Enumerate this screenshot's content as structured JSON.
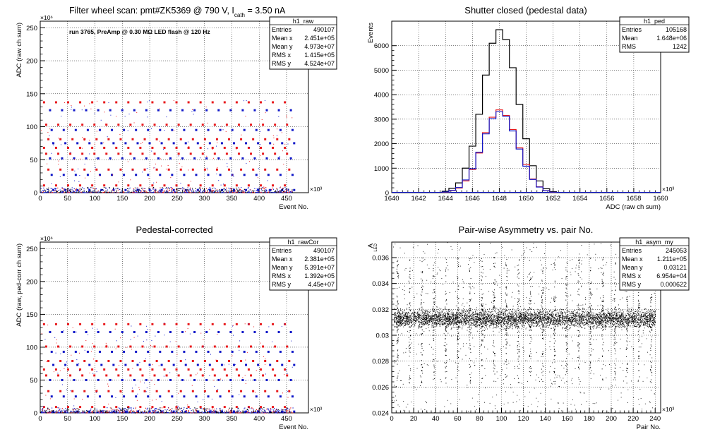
{
  "colors": {
    "red": "#e8191c",
    "blue": "#1018c8",
    "black": "#000000",
    "grid": "#000000"
  },
  "chart_data": [
    {
      "type": "scatter",
      "title": "Filter wheel scan: pmt#ZK5369 @   790 V, I",
      "title_sub": "cath",
      "title_tail": " = 3.50 nA",
      "annotation": "run 3765, PreAmp @ 0.30 MΩ LED flash @  120 Hz",
      "xlabel": "Event No.",
      "ylabel": "ADC (raw ch sum)",
      "x_exponent": "×10³",
      "y_exponent": "×10⁶",
      "xlim": [
        0,
        490
      ],
      "ylim": [
        0,
        260
      ],
      "xticks": [
        "0",
        "50",
        "100",
        "150",
        "200",
        "250",
        "300",
        "350",
        "400",
        "450"
      ],
      "yticks": [
        "0",
        "50",
        "100",
        "150",
        "200",
        "250"
      ],
      "grid": true,
      "red_levels": [
        137,
        103,
        81,
        68,
        59,
        35,
        11
      ],
      "blue_levels": [
        125,
        95,
        75,
        52,
        27,
        4
      ],
      "cycle_start": [
        0,
        462
      ],
      "cycle_period": 22,
      "stats": {
        "name": "h1_raw",
        "rows": [
          {
            "label": "Entries",
            "value": "490107"
          },
          {
            "label": "Mean x",
            "value": "2.451e+05"
          },
          {
            "label": "Mean y",
            "value": "4.973e+07"
          },
          {
            "label": "RMS x",
            "value": "1.415e+05"
          },
          {
            "label": "RMS y",
            "value": "4.524e+07"
          }
        ]
      }
    },
    {
      "type": "line",
      "title": "Shutter closed (pedestal data)",
      "xlabel": "ADC (raw ch sum)",
      "ylabel": "Events",
      "x_exponent": "×10³",
      "xlim": [
        1640,
        1660
      ],
      "ylim": [
        0,
        7000
      ],
      "xticks": [
        "1640",
        "1642",
        "1644",
        "1646",
        "1648",
        "1650",
        "1652",
        "1654",
        "1656",
        "1658",
        "1660"
      ],
      "yticks": [
        "0",
        "1000",
        "2000",
        "3000",
        "4000",
        "5000",
        "6000"
      ],
      "grid": true,
      "series": [
        {
          "color": "black",
          "x": [
            1644.0,
            1644.5,
            1645.0,
            1645.5,
            1646.0,
            1646.5,
            1647.0,
            1647.5,
            1648.0,
            1648.5,
            1649.0,
            1649.5,
            1650.0,
            1650.5,
            1651.0,
            1651.5,
            1652.0
          ],
          "values": [
            60,
            180,
            400,
            1000,
            1900,
            3200,
            4800,
            6100,
            6650,
            6250,
            5100,
            3600,
            2200,
            1100,
            480,
            160,
            40
          ]
        },
        {
          "color": "red",
          "x": [
            1644.0,
            1644.5,
            1645.0,
            1645.5,
            1646.0,
            1646.5,
            1647.0,
            1647.5,
            1648.0,
            1648.5,
            1649.0,
            1649.5,
            1650.0,
            1650.5,
            1651.0,
            1651.5,
            1652.0
          ],
          "values": [
            25,
            85,
            190,
            480,
            950,
            1620,
            2450,
            3080,
            3380,
            3150,
            2580,
            1830,
            1150,
            560,
            240,
            80,
            15
          ]
        },
        {
          "color": "blue",
          "x": [
            1644.0,
            1644.5,
            1645.0,
            1645.5,
            1646.0,
            1646.5,
            1647.0,
            1647.5,
            1648.0,
            1648.5,
            1649.0,
            1649.5,
            1650.0,
            1650.5,
            1651.0,
            1651.5,
            1652.0
          ],
          "values": [
            30,
            95,
            210,
            520,
            980,
            1650,
            2400,
            3020,
            3300,
            3120,
            2520,
            1780,
            1080,
            540,
            230,
            75,
            20
          ]
        }
      ],
      "stats": {
        "name": "h1_ped",
        "rows": [
          {
            "label": "Entries",
            "value": "105168"
          },
          {
            "label": "Mean",
            "value": "1.648e+06"
          },
          {
            "label": "RMS",
            "value": "1242"
          }
        ]
      }
    },
    {
      "type": "scatter",
      "title": "Pedestal-corrected",
      "xlabel": "Event No.",
      "ylabel": "ADC (raw, ped-corr ch sum)",
      "x_exponent": "×10³",
      "y_exponent": "×10⁶",
      "xlim": [
        0,
        490
      ],
      "ylim": [
        0,
        260
      ],
      "xticks": [
        "0",
        "50",
        "100",
        "150",
        "200",
        "250",
        "300",
        "350",
        "400",
        "450"
      ],
      "yticks": [
        "0",
        "50",
        "100",
        "150",
        "200",
        "250"
      ],
      "grid": true,
      "red_levels": [
        135,
        101,
        79,
        66,
        57,
        33,
        9
      ],
      "blue_levels": [
        123,
        93,
        73,
        50,
        25,
        2
      ],
      "cycle_start": [
        0,
        462
      ],
      "cycle_period": 22,
      "stats": {
        "name": "h1_rawCor",
        "rows": [
          {
            "label": "Entries",
            "value": "490107"
          },
          {
            "label": "Mean x",
            "value": "2.381e+05"
          },
          {
            "label": "Mean y",
            "value": "5.391e+07"
          },
          {
            "label": "RMS x",
            "value": "1.392e+05"
          },
          {
            "label": "RMS y",
            "value": "4.45e+07"
          }
        ]
      }
    },
    {
      "type": "scatter",
      "title": "Pair-wise Asymmetry vs. pair No.",
      "xlabel": "Pair No.",
      "ylabel": "A",
      "ylabel_sub": "LED",
      "x_exponent": "×10³",
      "xlim": [
        0,
        245
      ],
      "ylim": [
        0.024,
        0.0372
      ],
      "xticks": [
        "0",
        "20",
        "40",
        "60",
        "80",
        "100",
        "120",
        "140",
        "160",
        "180",
        "200",
        "220",
        "240"
      ],
      "yticks": [
        "0.024",
        "0.026",
        "0.028",
        "0.03",
        "0.032",
        "0.034",
        "0.036"
      ],
      "grid": true,
      "band_center": 0.0313,
      "band_halfwidth": 0.0006,
      "spike_period": 11,
      "stats": {
        "name": "h1_asym_my",
        "rows": [
          {
            "label": "Entries",
            "value": "245053"
          },
          {
            "label": "Mean x",
            "value": "1.211e+05"
          },
          {
            "label": "Mean y",
            "value": "0.03121"
          },
          {
            "label": "RMS x",
            "value": "6.954e+04"
          },
          {
            "label": "RMS y",
            "value": "0.000622"
          }
        ]
      }
    }
  ]
}
